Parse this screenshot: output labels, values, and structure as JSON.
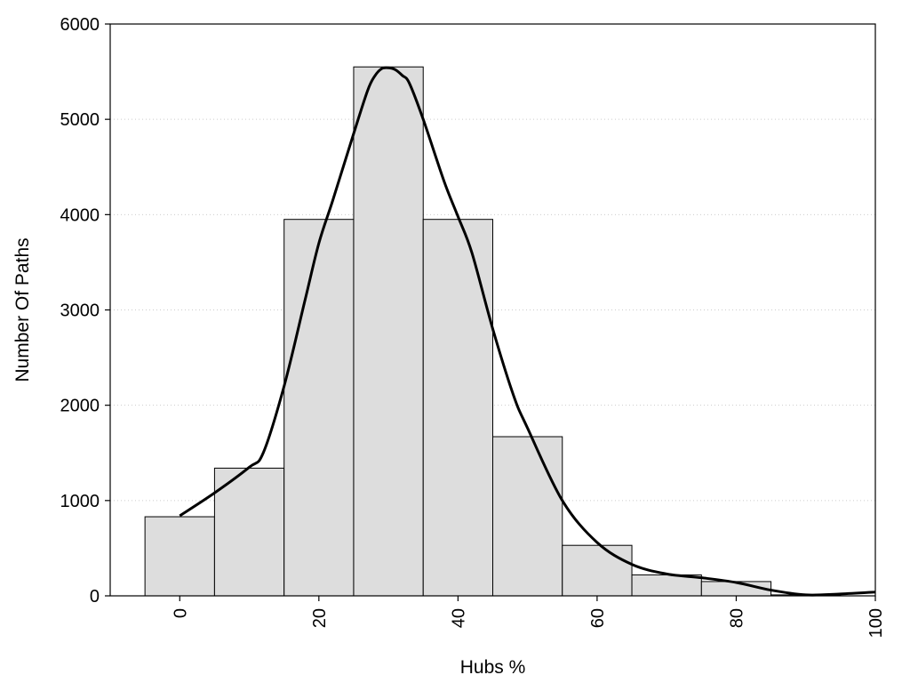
{
  "chart_data": {
    "type": "bar",
    "title": "",
    "xlabel": "Hubs %",
    "ylabel": "Number Of Paths",
    "xlim": [
      -10,
      100
    ],
    "ylim": [
      0,
      6000
    ],
    "xticks": [
      "0",
      "20",
      "40",
      "60",
      "80",
      "100"
    ],
    "yticks": [
      "0",
      "1000",
      "2000",
      "3000",
      "4000",
      "5000",
      "6000"
    ],
    "grid": "horizontal dotted",
    "legend": "none",
    "bin_width": 10,
    "bins": [
      {
        "x": 0,
        "value": 830
      },
      {
        "x": 10,
        "value": 1340
      },
      {
        "x": 20,
        "value": 3950
      },
      {
        "x": 30,
        "value": 5550
      },
      {
        "x": 40,
        "value": 3950
      },
      {
        "x": 50,
        "value": 1670
      },
      {
        "x": 60,
        "value": 530
      },
      {
        "x": 70,
        "value": 220
      },
      {
        "x": 80,
        "value": 150
      },
      {
        "x": 90,
        "value": 10
      }
    ],
    "density_curve": {
      "x": [
        0,
        5,
        10,
        12,
        15,
        18,
        20,
        22,
        25,
        27,
        28,
        29,
        30,
        31,
        32,
        33,
        35,
        38,
        40,
        42,
        45,
        48,
        50,
        55,
        60,
        65,
        70,
        75,
        80,
        85,
        90,
        95,
        100
      ],
      "y": [
        840,
        1080,
        1350,
        1500,
        2200,
        3100,
        3700,
        4150,
        4850,
        5300,
        5450,
        5530,
        5540,
        5520,
        5460,
        5380,
        5000,
        4350,
        3980,
        3600,
        2800,
        2100,
        1760,
        1000,
        560,
        330,
        230,
        190,
        140,
        60,
        10,
        20,
        40
      ]
    },
    "colors": {
      "bar_fill": "#dddddd",
      "bar_stroke": "#000000",
      "curve": "#000000",
      "grid": "#cccccc"
    }
  }
}
